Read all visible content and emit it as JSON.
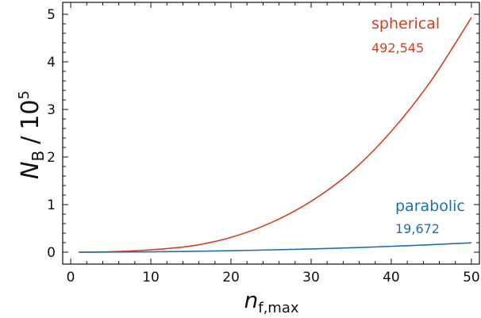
{
  "chart_data": {
    "type": "line",
    "xlabel": {
      "main": "n",
      "sub": "f,max"
    },
    "ylabel": {
      "main": "N",
      "sub": "B",
      "divider": "/",
      "base": "10",
      "exp": "5"
    },
    "xlim": [
      -1,
      51
    ],
    "ylim": [
      -0.25,
      5.25
    ],
    "xticks": [
      0,
      10,
      20,
      30,
      40,
      50
    ],
    "yticks": [
      0,
      1,
      2,
      3,
      4,
      5
    ],
    "grid": false,
    "series": [
      {
        "name": "spherical",
        "value_label": "492,545",
        "color": "#d13f22",
        "x": [
          1,
          5,
          10,
          15,
          20,
          25,
          30,
          35,
          40,
          45,
          50
        ],
        "y": [
          0.0,
          0.01,
          0.05,
          0.13,
          0.31,
          0.62,
          1.07,
          1.69,
          2.54,
          3.61,
          4.93
        ]
      },
      {
        "name": "parabolic",
        "value_label": "19,672",
        "color": "#1a6fb0",
        "x": [
          1,
          5,
          10,
          15,
          20,
          25,
          30,
          35,
          40,
          45,
          50
        ],
        "y": [
          0.0,
          0.002,
          0.008,
          0.018,
          0.03,
          0.048,
          0.068,
          0.093,
          0.123,
          0.158,
          0.197
        ]
      }
    ]
  }
}
